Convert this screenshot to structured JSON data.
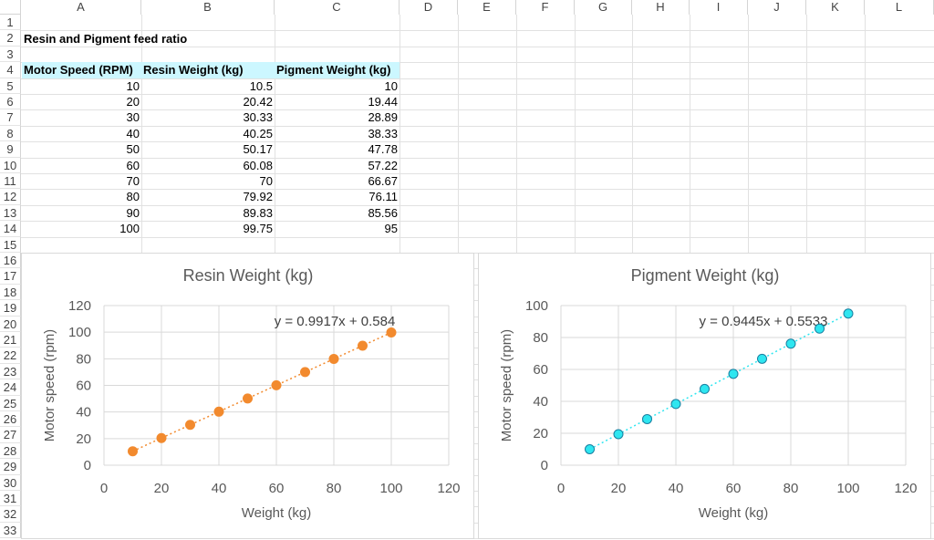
{
  "sheet": {
    "columns": [
      "A",
      "B",
      "C",
      "D",
      "E",
      "F",
      "G",
      "H",
      "I",
      "J",
      "K",
      "L"
    ],
    "rows": [
      "1",
      "2",
      "3",
      "4",
      "5",
      "6",
      "7",
      "8",
      "9",
      "10",
      "11",
      "12",
      "13",
      "14",
      "15",
      "16",
      "17",
      "18",
      "19",
      "20",
      "21",
      "22",
      "23",
      "24",
      "25",
      "26",
      "27",
      "28",
      "29",
      "30",
      "31",
      "32",
      "33"
    ],
    "title": "Resin and Pigment feed ratio",
    "headers": [
      "Motor Speed (RPM)",
      "Resin Weight (kg)",
      "Pigment Weight (kg)"
    ],
    "header_fill": "#ccf7ff",
    "data": [
      [
        "10",
        "10.5",
        "10"
      ],
      [
        "20",
        "20.42",
        "19.44"
      ],
      [
        "30",
        "30.33",
        "28.89"
      ],
      [
        "40",
        "40.25",
        "38.33"
      ],
      [
        "50",
        "50.17",
        "47.78"
      ],
      [
        "60",
        "60.08",
        "57.22"
      ],
      [
        "70",
        "70",
        "66.67"
      ],
      [
        "80",
        "79.92",
        "76.11"
      ],
      [
        "90",
        "89.83",
        "85.56"
      ],
      [
        "100",
        "99.75",
        "95"
      ]
    ]
  },
  "chart_data": [
    {
      "type": "scatter",
      "title": "Resin Weight (kg)",
      "xlabel": "Weight (kg)",
      "ylabel": "Motor speed (rpm)",
      "xlim": [
        0,
        120
      ],
      "ylim": [
        0,
        120
      ],
      "xticks": [
        "0",
        "20",
        "40",
        "60",
        "80",
        "100",
        "120"
      ],
      "yticks": [
        "0",
        "20",
        "40",
        "60",
        "80",
        "100",
        "120"
      ],
      "x": [
        10,
        20,
        30,
        40,
        50,
        60,
        70,
        80,
        90,
        100
      ],
      "y": [
        10.5,
        20.42,
        30.33,
        40.25,
        50.17,
        60.08,
        70,
        79.92,
        89.83,
        99.75
      ],
      "trendline": {
        "slope": 0.9917,
        "intercept": 0.584,
        "label": "y = 0.9917x + 0.584",
        "style": "dotted"
      },
      "marker_color": "#f28a2e",
      "marker_edge": "#f28a2e",
      "grid": true
    },
    {
      "type": "scatter",
      "title": "Pigment Weight (kg)",
      "xlabel": "Weight (kg)",
      "ylabel": "Motor speed (rpm)",
      "xlim": [
        0,
        120
      ],
      "ylim": [
        0,
        100
      ],
      "xticks": [
        "0",
        "20",
        "40",
        "60",
        "80",
        "100",
        "120"
      ],
      "yticks": [
        "0",
        "20",
        "40",
        "60",
        "80",
        "100"
      ],
      "x": [
        10,
        20,
        30,
        40,
        50,
        60,
        70,
        80,
        90,
        100
      ],
      "y": [
        10,
        19.44,
        28.89,
        38.33,
        47.78,
        57.22,
        66.67,
        76.11,
        85.56,
        95
      ],
      "trendline": {
        "slope": 0.9445,
        "intercept": 0.5533,
        "label": "y = 0.9445x + 0.5533",
        "style": "dotted"
      },
      "marker_color": "#2ee6f0",
      "marker_edge": "#1a7fa0",
      "grid": true
    }
  ]
}
